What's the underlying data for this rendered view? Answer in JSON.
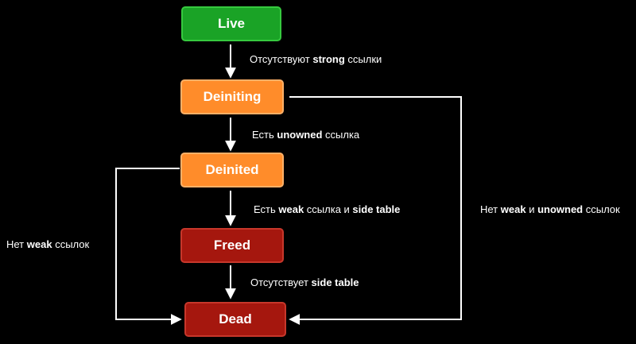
{
  "states": {
    "live": "Live",
    "deiniting": "Deiniting",
    "deinited": "Deinited",
    "freed": "Freed",
    "dead": "Dead"
  },
  "transitions": {
    "live_deiniting": {
      "pre": "Отсутствуют ",
      "bold": "strong",
      "post": " ссылки"
    },
    "deiniting_deinited": {
      "pre": "Есть ",
      "bold": "unowned",
      "post": " ссылка"
    },
    "deinited_freed": {
      "pre": "Есть ",
      "bold": "weak",
      "mid": " ссылка и ",
      "bold2": "side table"
    },
    "freed_dead": {
      "pre": "Отсутствует ",
      "bold": "side table"
    },
    "deiniting_dead": {
      "pre": "Нет ",
      "bold": "weak",
      "mid": " и ",
      "bold2": "unowned",
      "post": " ссылок"
    },
    "deinited_dead": {
      "pre": "Нет ",
      "bold": "weak",
      "post": " ссылок"
    }
  },
  "colors": {
    "live": "#1aa326",
    "deiniting": "#ff8c2a",
    "freed": "#a5170e",
    "arrow": "#ffffff"
  }
}
